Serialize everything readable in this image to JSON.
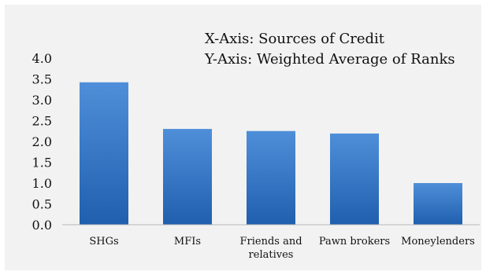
{
  "colors": {
    "bar_top": "#4f8fd9",
    "bar_bottom": "#1f5fae",
    "background": "#f2f2f2",
    "axis": "#b8b8b8"
  },
  "chart_data": {
    "type": "bar",
    "categories": [
      "SHGs",
      "MFIs",
      "Friends and relatives",
      "Pawn brokers",
      "Moneylenders"
    ],
    "category_lines": [
      [
        "SHGs"
      ],
      [
        "MFIs"
      ],
      [
        "Friends and",
        "relatives"
      ],
      [
        "Pawn brokers"
      ],
      [
        "Moneylenders"
      ]
    ],
    "values": [
      3.42,
      2.3,
      2.25,
      2.19,
      1.0
    ],
    "ylim": [
      0,
      4
    ],
    "yticks": [
      "0.0",
      "0.5",
      "1.0",
      "1.5",
      "2.0",
      "2.5",
      "3.0",
      "3.5",
      "4.0"
    ],
    "annotations": [
      "X-Axis: Sources of Credit",
      "Y-Axis: Weighted Average of Ranks"
    ],
    "grid": false,
    "legend": "none"
  }
}
